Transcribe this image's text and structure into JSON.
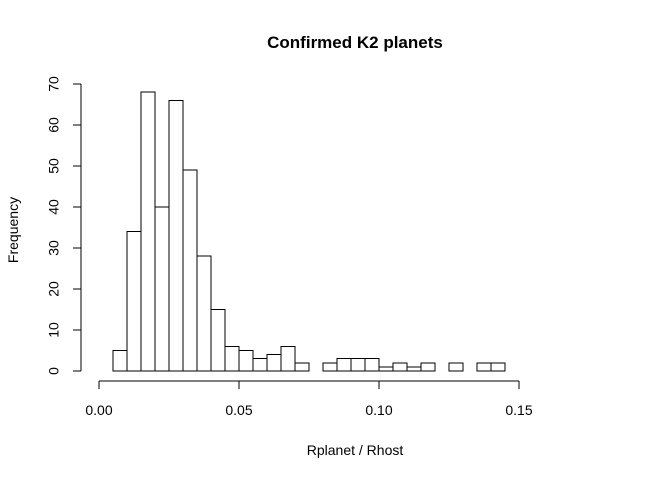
{
  "chart_data": {
    "type": "bar",
    "subtype": "histogram",
    "title": "Confirmed K2 planets",
    "xlabel": "Rplanet / Rhost",
    "ylabel": "Frequency",
    "xlim": [
      0.0,
      0.18
    ],
    "ylim": [
      0,
      70
    ],
    "x_ticks": [
      "0.00",
      "0.05",
      "0.10",
      "0.15"
    ],
    "x_tick_values": [
      0.0,
      0.05,
      0.1,
      0.15
    ],
    "y_ticks": [
      "0",
      "10",
      "20",
      "30",
      "40",
      "50",
      "60",
      "70"
    ],
    "y_tick_values": [
      0,
      10,
      20,
      30,
      40,
      50,
      60,
      70
    ],
    "bin_width": 0.005,
    "bin_start": 0.0,
    "values": [
      0,
      5,
      34,
      68,
      40,
      66,
      49,
      28,
      15,
      6,
      5,
      3,
      4,
      6,
      2,
      0,
      2,
      3,
      3,
      3,
      1,
      2,
      1,
      2,
      0,
      2,
      0,
      2,
      2,
      0,
      0,
      0,
      0,
      0,
      0,
      0
    ],
    "bar_fill": "#ffffff",
    "bar_stroke": "#000000",
    "grid": false
  }
}
